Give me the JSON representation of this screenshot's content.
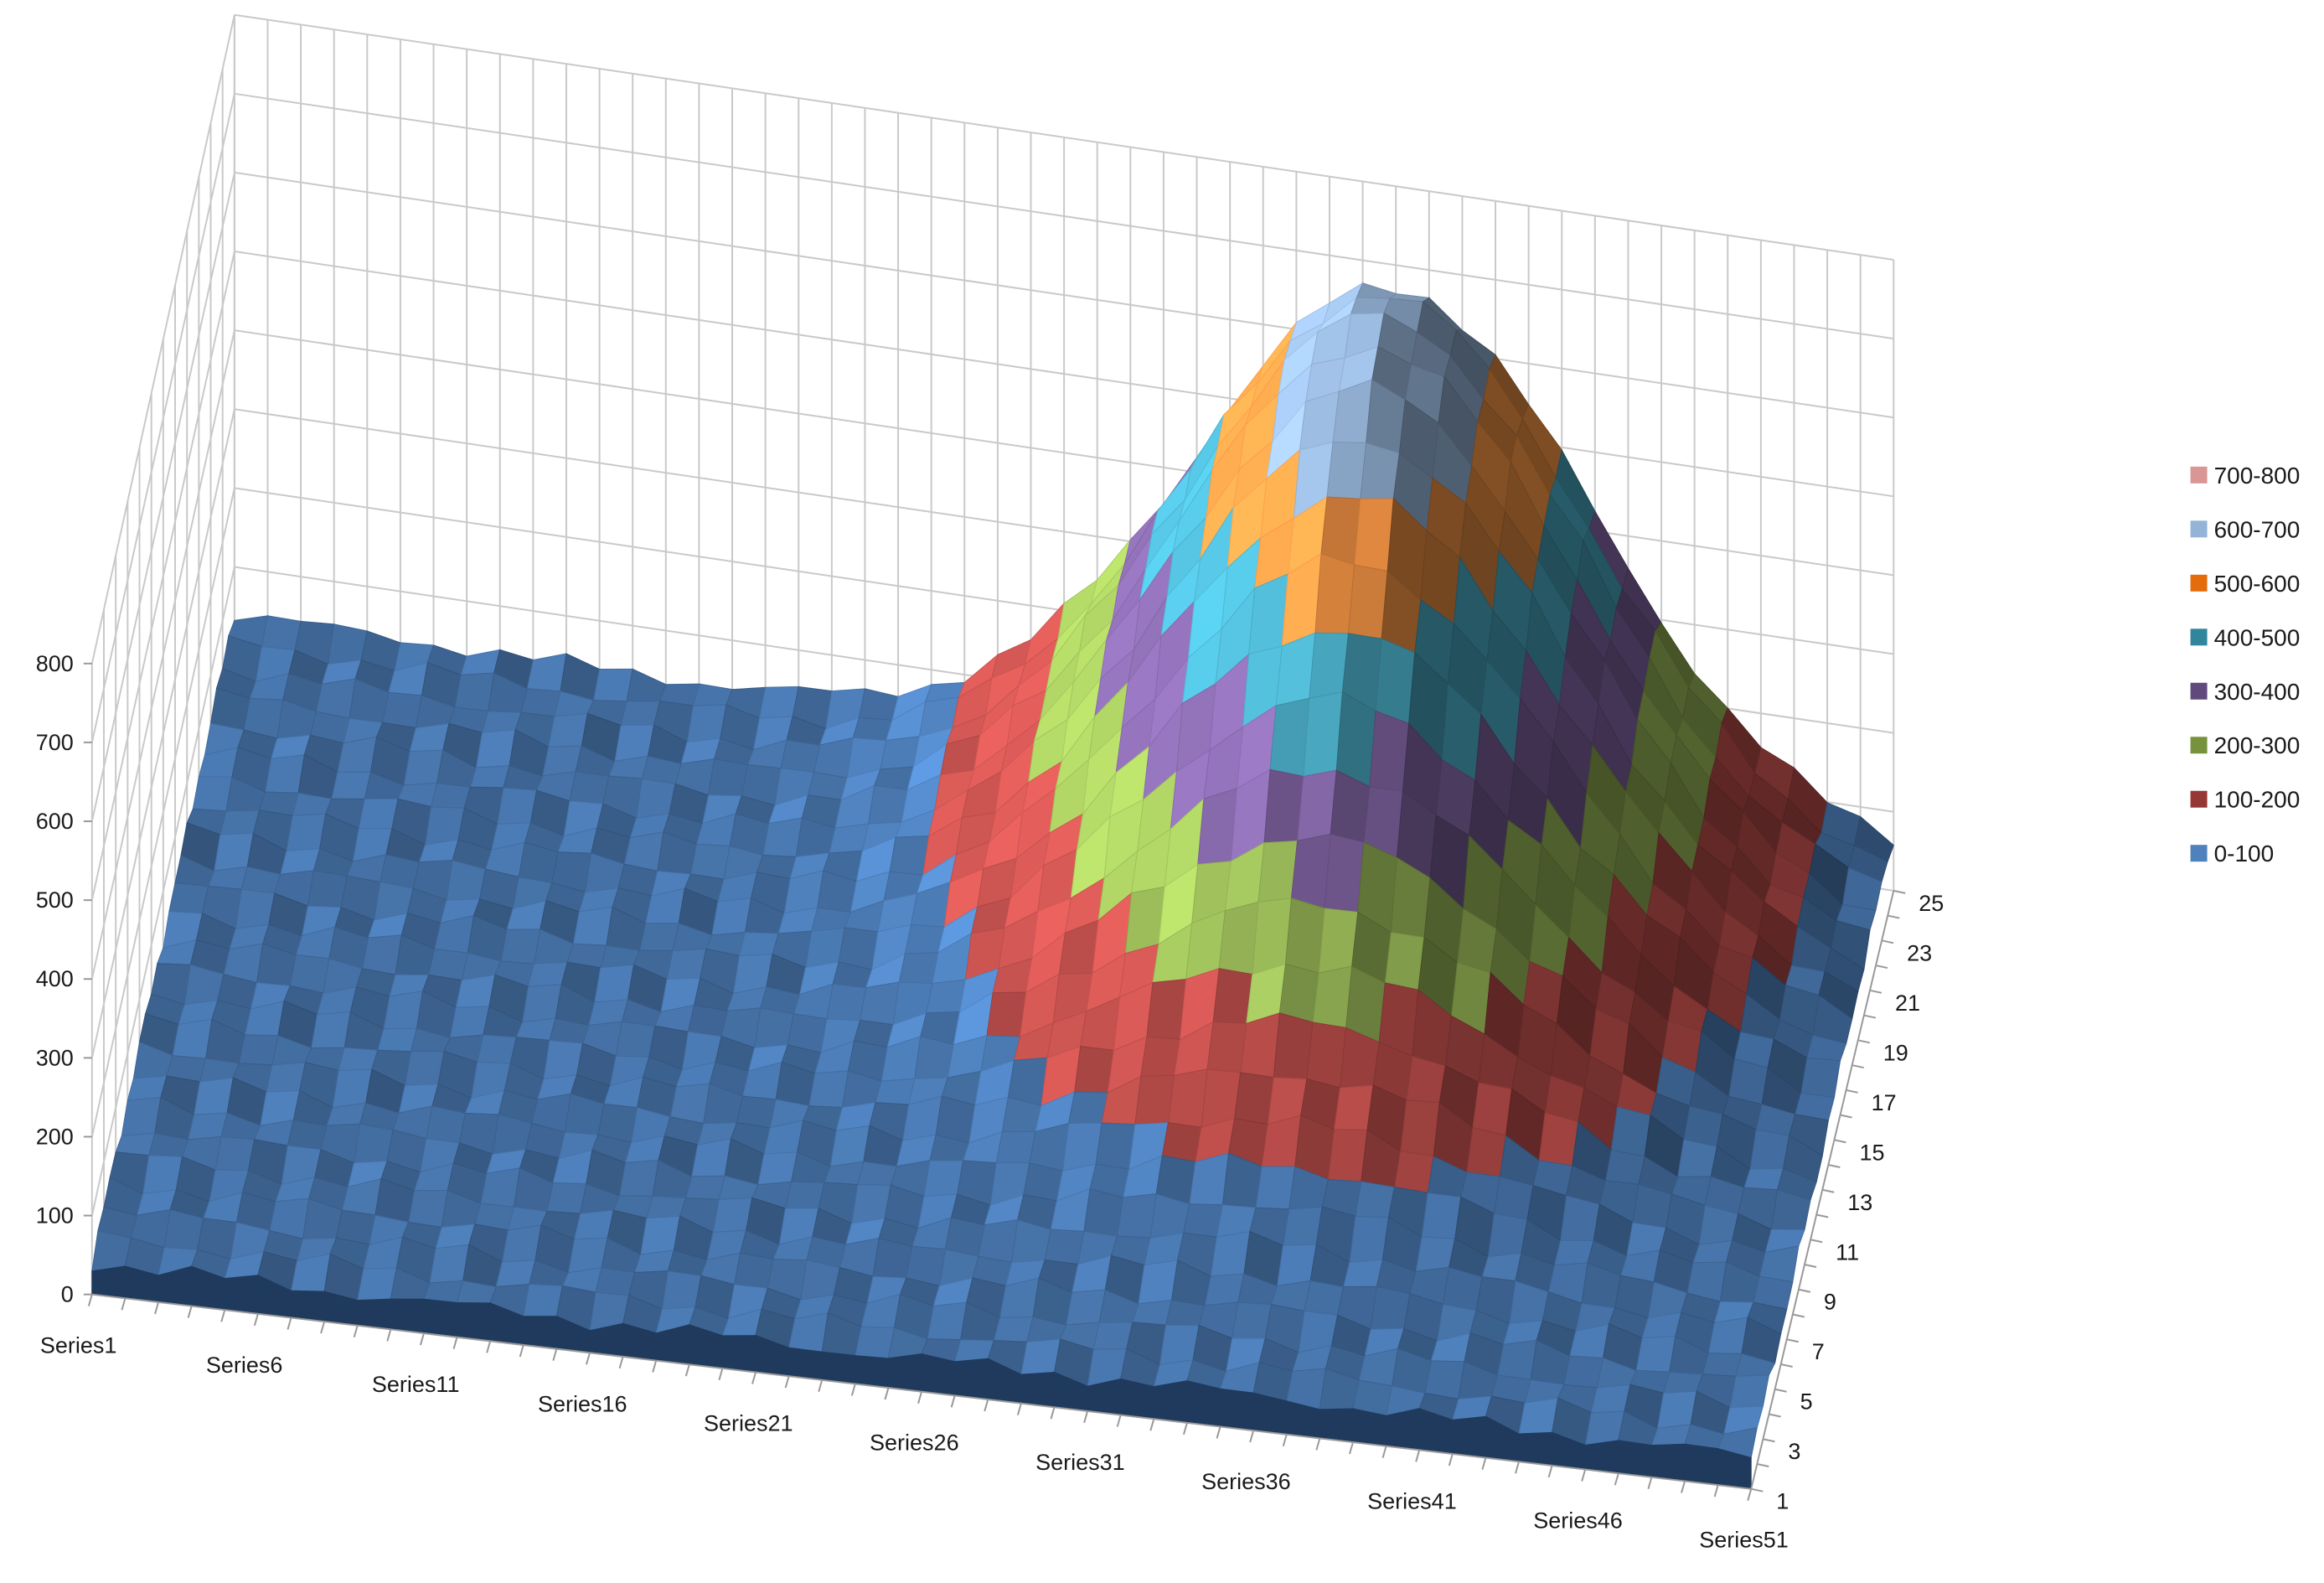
{
  "chart_data": {
    "type": "surface",
    "z_axis": {
      "range": [
        0,
        800
      ],
      "ticks": [
        "0",
        "100",
        "200",
        "300",
        "400",
        "500",
        "600",
        "700",
        "800"
      ]
    },
    "series_axis": {
      "count": 51,
      "tick_labels": [
        "Series1",
        "Series6",
        "Series11",
        "Series16",
        "Series21",
        "Series26",
        "Series31",
        "Series36",
        "Series41",
        "Series46",
        "Series51"
      ],
      "tick_label_index": [
        1,
        6,
        11,
        16,
        21,
        26,
        31,
        36,
        41,
        46,
        51
      ]
    },
    "category_axis": {
      "count": 25,
      "tick_labels": [
        "1",
        "3",
        "5",
        "7",
        "9",
        "11",
        "13",
        "15",
        "17",
        "19",
        "21",
        "23",
        "25"
      ]
    },
    "legend": {
      "position": "right",
      "entries": [
        {
          "label": "700-800",
          "color": "#d99694"
        },
        {
          "label": "600-700",
          "color": "#95b3d7"
        },
        {
          "label": "500-600",
          "color": "#e46c0a"
        },
        {
          "label": "400-500",
          "color": "#31859c"
        },
        {
          "label": "300-400",
          "color": "#604a7b"
        },
        {
          "label": "200-300",
          "color": "#76923c"
        },
        {
          "label": "100-200",
          "color": "#953735"
        },
        {
          "label": "0-100",
          "color": "#4f81bd"
        }
      ]
    },
    "band_colors": [
      "#4f81bd",
      "#c0504d",
      "#9bbb59",
      "#8064a2",
      "#4bacc6",
      "#f79646",
      "#95b3d7",
      "#d99694"
    ],
    "surface": {
      "description": "Single peak",
      "peak_series": 36,
      "peak_category": 23,
      "peak_value": 700,
      "spread_series": 6,
      "spread_category": 7,
      "baseline": 40
    },
    "gridlines": true
  }
}
